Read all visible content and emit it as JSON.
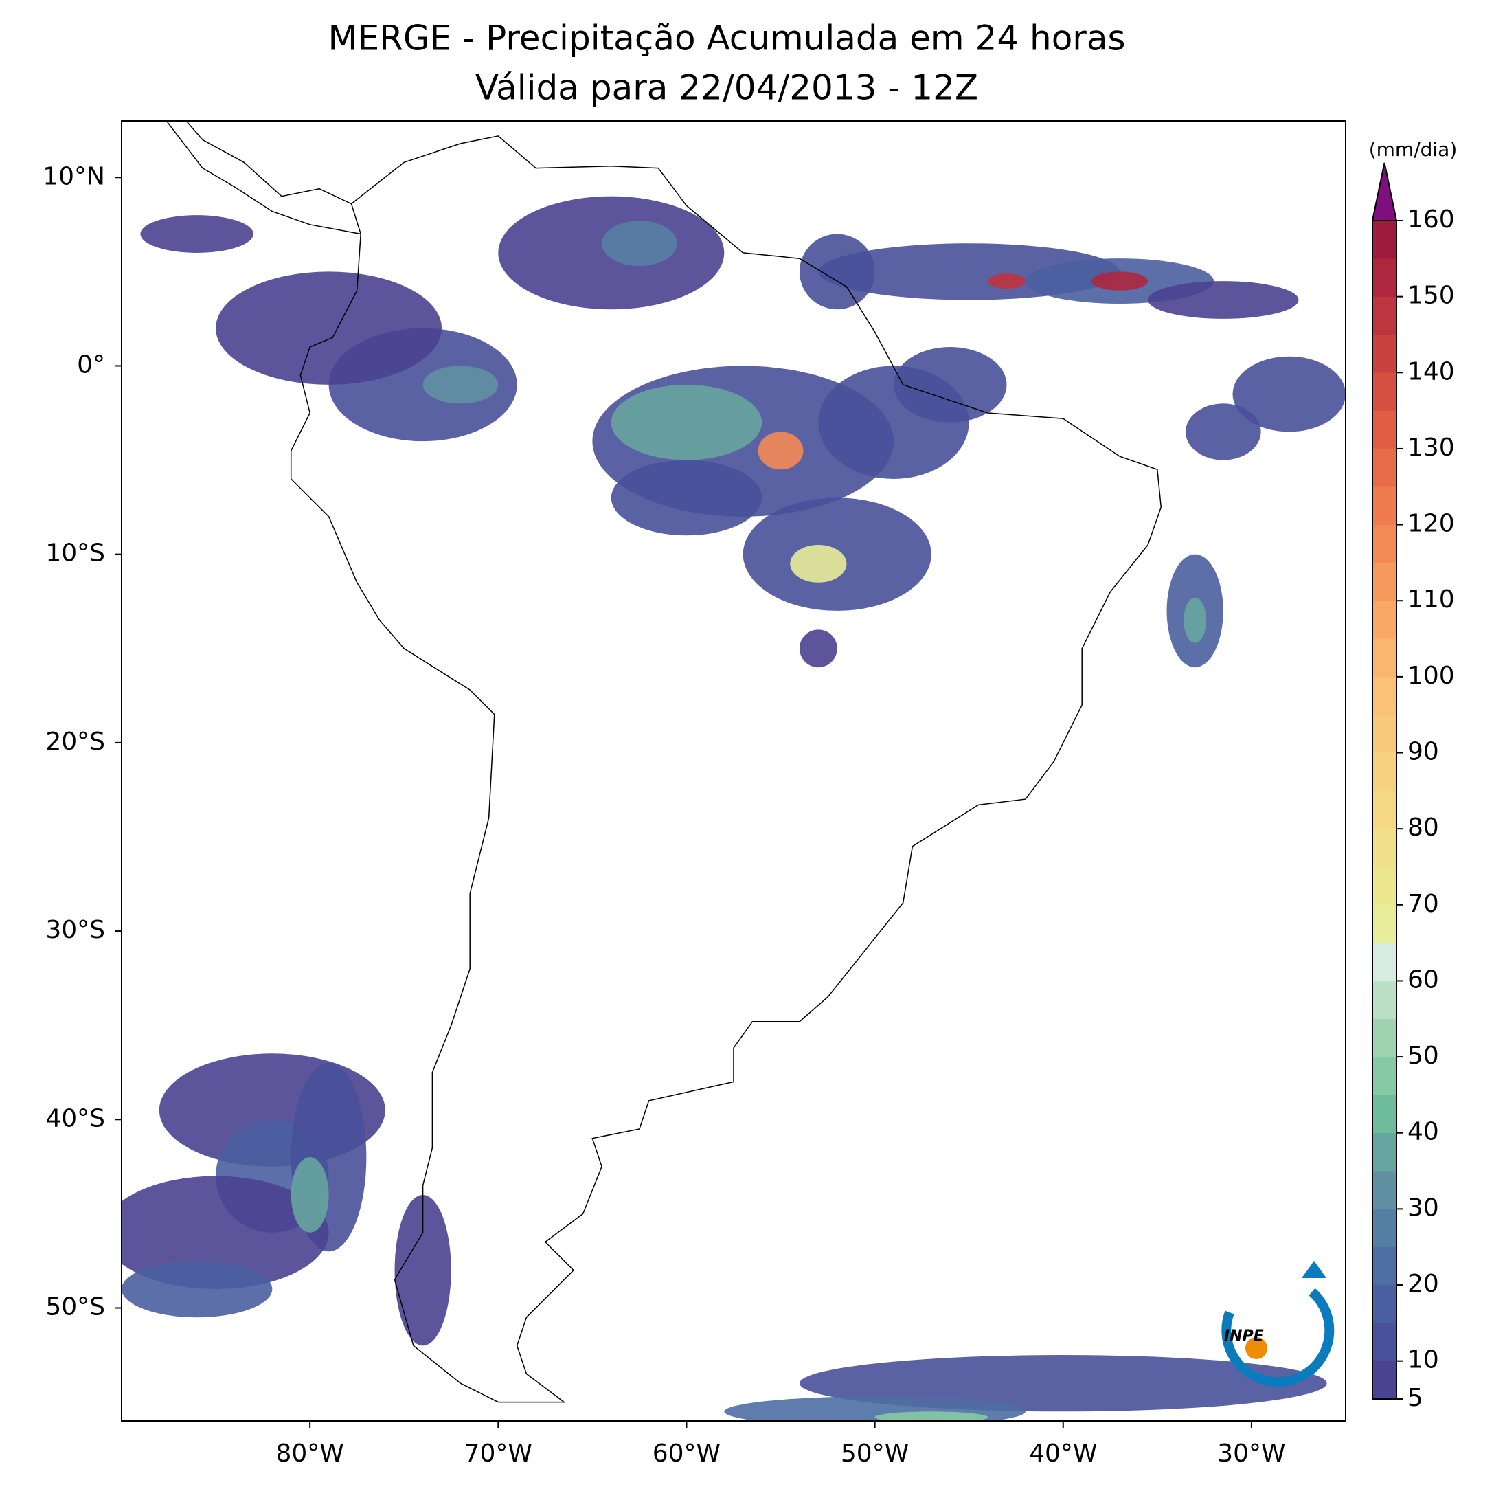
{
  "title": "MERGE - Precipitação Acumulada em 24 horas",
  "subtitle": "Válida para 22/04/2013 - 12Z",
  "map": {
    "xlim": [
      -90,
      -25
    ],
    "ylim": [
      -56,
      13
    ],
    "xticks": [
      {
        "value": -80,
        "label": "80°W"
      },
      {
        "value": -70,
        "label": "70°W"
      },
      {
        "value": -60,
        "label": "60°W"
      },
      {
        "value": -50,
        "label": "50°W"
      },
      {
        "value": -40,
        "label": "40°W"
      },
      {
        "value": -30,
        "label": "30°W"
      }
    ],
    "yticks": [
      {
        "value": 10,
        "label": "10°N"
      },
      {
        "value": 0,
        "label": "0°"
      },
      {
        "value": -10,
        "label": "10°S"
      },
      {
        "value": -20,
        "label": "20°S"
      },
      {
        "value": -30,
        "label": "30°S"
      },
      {
        "value": -40,
        "label": "40°S"
      },
      {
        "value": -50,
        "label": "50°S"
      }
    ]
  },
  "colorbar": {
    "label": "(mm/dia)",
    "levels": [
      5,
      10,
      15,
      20,
      25,
      30,
      35,
      40,
      45,
      50,
      55,
      60,
      65,
      70,
      75,
      80,
      85,
      90,
      95,
      100,
      105,
      110,
      115,
      120,
      125,
      130,
      135,
      140,
      145,
      150,
      155,
      160
    ],
    "ticks": [
      5,
      10,
      20,
      30,
      40,
      50,
      60,
      70,
      80,
      90,
      100,
      110,
      120,
      130,
      140,
      150,
      160
    ],
    "colors": [
      "#4a4390",
      "#48519a",
      "#4a5fa0",
      "#4e6fa3",
      "#5680a3",
      "#5f91a3",
      "#67a5a0",
      "#6fbc9c",
      "#87c9a4",
      "#a1d3b1",
      "#bce0c6",
      "#d6ebe2",
      "#e7ed98",
      "#ece78f",
      "#f0e08a",
      "#f4d884",
      "#f7d17f",
      "#f9c97b",
      "#fbc176",
      "#fbb56e",
      "#f9a865",
      "#f6995d",
      "#f38a55",
      "#ef7b4e",
      "#e96c48",
      "#e15e44",
      "#d65042",
      "#ca4240",
      "#bc353f",
      "#ad283e",
      "#9e1b3e"
    ],
    "extend_color": "#7f0f7f"
  },
  "logo": "INPE"
}
